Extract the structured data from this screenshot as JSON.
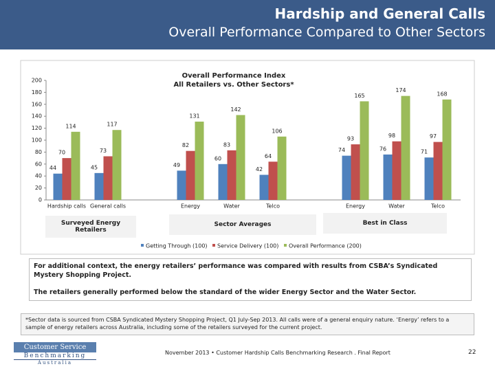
{
  "header": {
    "title": "Hardship and General Calls",
    "subtitle": "Overall Performance Compared to Other Sectors"
  },
  "chart_data": {
    "type": "bar",
    "title": "Overall Performance Index",
    "subtitle": "All Retailers vs. Other Sectors*",
    "categories": [
      "Hardship calls",
      "General calls",
      null,
      "Energy",
      "Water",
      "Telco",
      null,
      "Energy",
      "Water",
      "Telco"
    ],
    "series": [
      {
        "name": "Getting Through (100)",
        "color": "#4f81bd",
        "values": [
          44,
          45,
          null,
          49,
          60,
          42,
          null,
          74,
          76,
          71
        ]
      },
      {
        "name": "Service Delivery (100)",
        "color": "#c0504d",
        "values": [
          70,
          73,
          null,
          82,
          83,
          64,
          null,
          93,
          98,
          97
        ]
      },
      {
        "name": "Overall Performance (200)",
        "color": "#9bbb59",
        "values": [
          114,
          117,
          null,
          131,
          142,
          106,
          null,
          165,
          174,
          168
        ]
      }
    ],
    "group_labels": [
      "Surveyed Energy Retailers",
      "Sector Averages",
      "Best in Class"
    ],
    "ylim": [
      0,
      200
    ],
    "yticks": [
      0,
      20,
      40,
      60,
      80,
      100,
      120,
      140,
      160,
      180,
      200
    ],
    "grid": false
  },
  "body": {
    "paragraphs": [
      "For additional context, the energy retailers’ performance was compared with results from CSBA’s Syndicated Mystery Shopping Project.",
      "The retailers generally performed below the standard of the wider Energy Sector and the Water Sector."
    ]
  },
  "note": {
    "text": "*Sector data is sourced from CSBA Syndicated Mystery Shopping Project, Q1 July-Sep 2013. All calls were of a general enquiry nature. ‘Energy’ refers to a sample of energy retailers across Australia, including some of the retailers surveyed for the current project."
  },
  "footer": {
    "logo": [
      "Customer Service",
      "Benchmarking",
      "Australia"
    ],
    "text": "November 2013 • Customer Hardship Calls Benchmarking Research . Final Report",
    "page": "22"
  }
}
